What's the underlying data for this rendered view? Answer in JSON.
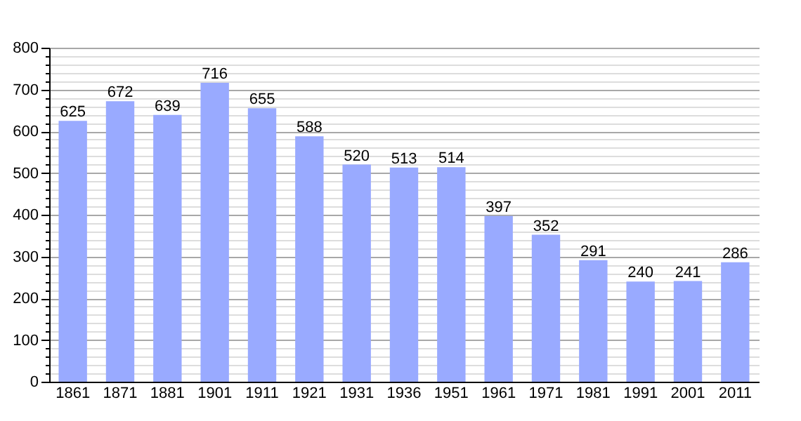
{
  "chart_data": {
    "type": "bar",
    "categories": [
      "1861",
      "1871",
      "1881",
      "1901",
      "1911",
      "1921",
      "1931",
      "1936",
      "1951",
      "1961",
      "1971",
      "1981",
      "1991",
      "2001",
      "2011"
    ],
    "values": [
      625,
      672,
      639,
      716,
      655,
      588,
      520,
      513,
      514,
      397,
      352,
      291,
      240,
      241,
      286
    ],
    "color": "#99aaff",
    "data_labels": true,
    "grid": "y",
    "ylim": [
      0,
      800
    ],
    "yticks": [
      0,
      {
        "value": 20,
        "label": null
      },
      {
        "value": 40,
        "label": null
      },
      {
        "value": 60,
        "label": null
      },
      {
        "value": 80,
        "label": null
      },
      100,
      {
        "value": 120,
        "label": null
      },
      {
        "value": 140,
        "label": null
      },
      {
        "value": 160,
        "label": null
      },
      {
        "value": 180,
        "label": null
      },
      200,
      {
        "value": 220,
        "label": null
      },
      {
        "value": 240,
        "label": null
      },
      {
        "value": 260,
        "label": null
      },
      {
        "value": 280,
        "label": null
      },
      300,
      {
        "value": 320,
        "label": null
      },
      {
        "value": 340,
        "label": null
      },
      {
        "value": 360,
        "label": null
      },
      {
        "value": 380,
        "label": null
      },
      400,
      {
        "value": 420,
        "label": null
      },
      {
        "value": 440,
        "label": null
      },
      {
        "value": 460,
        "label": null
      },
      {
        "value": 480,
        "label": null
      },
      500,
      {
        "value": 520,
        "label": null
      },
      {
        "value": 540,
        "label": null
      },
      {
        "value": 560,
        "label": null
      },
      {
        "value": 580,
        "label": null
      },
      600,
      {
        "value": 620,
        "label": null
      },
      {
        "value": 640,
        "label": null
      },
      {
        "value": 660,
        "label": null
      },
      {
        "value": 680,
        "label": null
      },
      700,
      {
        "value": 720,
        "label": null
      },
      {
        "value": 740,
        "label": null
      },
      {
        "value": 760,
        "label": null
      },
      {
        "value": 780,
        "label": null
      },
      800
    ]
  }
}
